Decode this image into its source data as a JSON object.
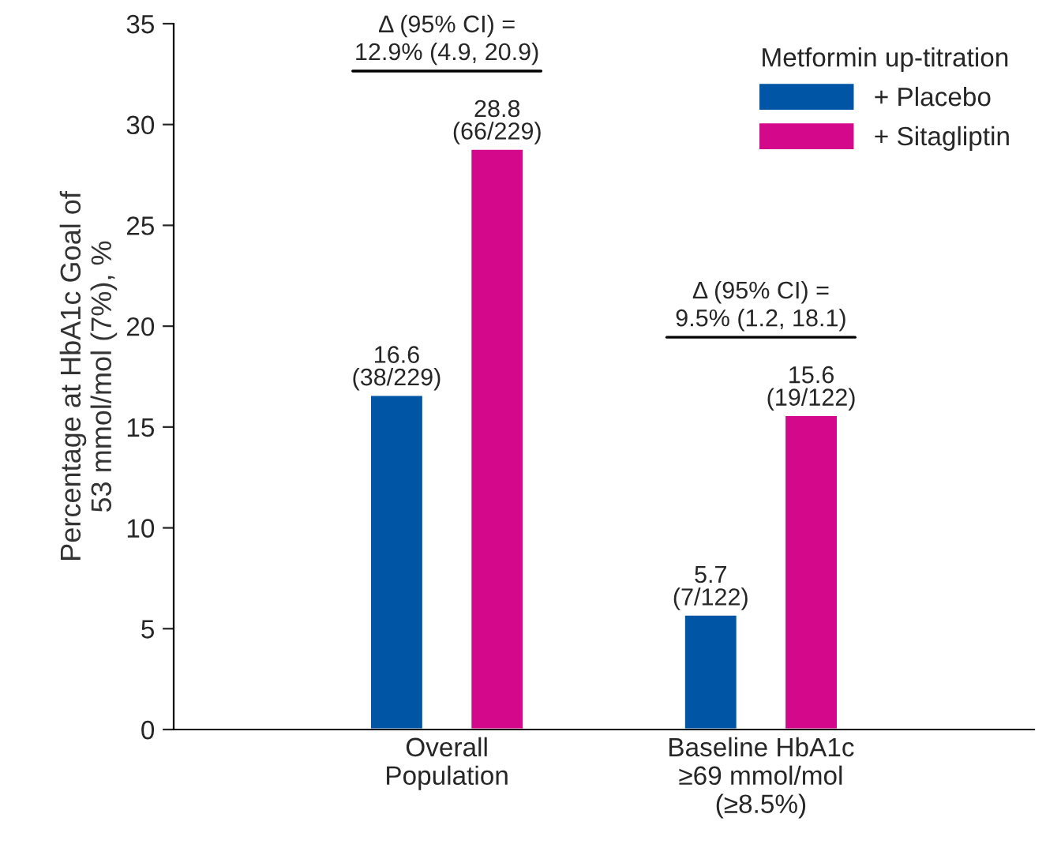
{
  "chart_data": {
    "type": "bar",
    "ylabel": "Percentage at HbA1c Goal of\n53 mmol/mol (7%), %",
    "categories": [
      "Overall\nPopulation",
      "Baseline HbA1c\n≥69 mmol/mol\n(≥8.5%)"
    ],
    "series": [
      {
        "name": "+ Placebo",
        "color": "#0055a5",
        "values": [
          16.6,
          5.7
        ],
        "value_labels": [
          "16.6\n(38/229)",
          "5.7\n(7/122)"
        ]
      },
      {
        "name": "+ Sitagliptin",
        "color": "#d4088a",
        "values": [
          28.8,
          15.6
        ],
        "value_labels": [
          "28.8\n(66/229)",
          "15.6\n(19/122)"
        ]
      }
    ],
    "legend_title": "Metformin up-titration",
    "legend": "top right",
    "ylim": [
      0,
      35
    ],
    "yticks": [
      0,
      5,
      10,
      15,
      20,
      25,
      30,
      35
    ],
    "grid": false,
    "annotations": [
      "Δ (95% CI) =\n12.9% (4.9, 20.9)",
      "Δ (95% CI) =\n9.5% (1.2, 18.1)"
    ]
  }
}
